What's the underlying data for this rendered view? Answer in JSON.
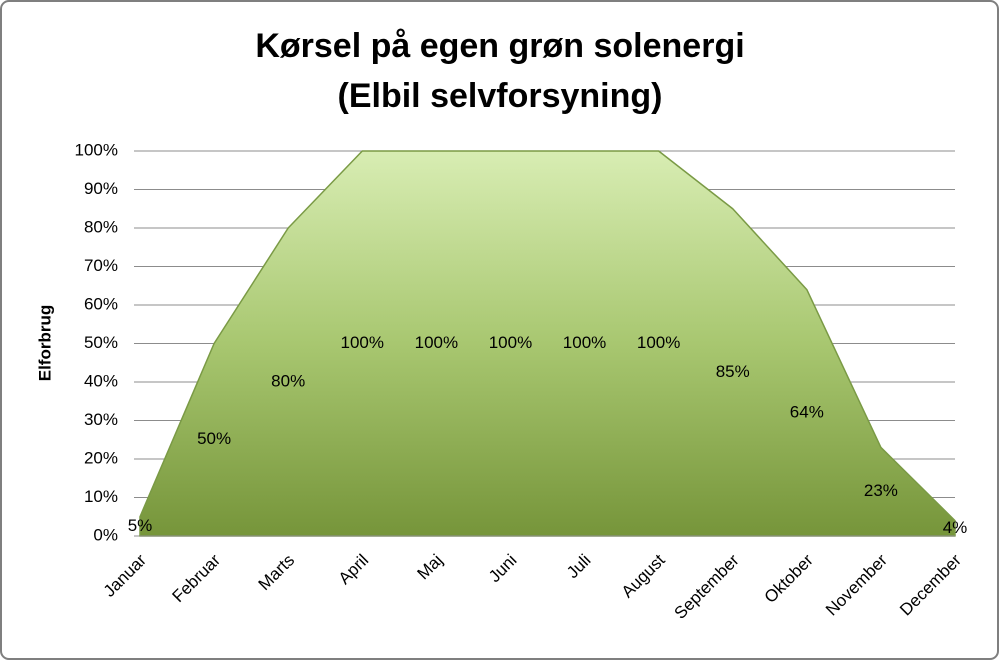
{
  "chart_data": {
    "type": "area",
    "title": [
      "Kørsel på egen grøn solenergi",
      "(Elbil selvforsyning)"
    ],
    "y_label": "Elforbrug",
    "categories": [
      "Januar",
      "Februar",
      "Marts",
      "April",
      "Maj",
      "Juni",
      "Juli",
      "August",
      "September",
      "Oktober",
      "November",
      "December"
    ],
    "values": [
      5,
      50,
      80,
      100,
      100,
      100,
      100,
      100,
      85,
      64,
      23,
      4
    ],
    "value_labels": [
      "5%",
      "50%",
      "80%",
      "100%",
      "100%",
      "100%",
      "100%",
      "100%",
      "85%",
      "64%",
      "23%",
      "4%"
    ],
    "color": "#8fb34f",
    "ylim": [
      0,
      100
    ],
    "yticks": [
      {
        "value": 0,
        "label": "0%"
      },
      {
        "value": 10,
        "label": "10%"
      },
      {
        "value": 20,
        "label": "20%"
      },
      {
        "value": 30,
        "label": "30%"
      },
      {
        "value": 40,
        "label": "40%"
      },
      {
        "value": 50,
        "label": "50%"
      },
      {
        "value": 60,
        "label": "60%"
      },
      {
        "value": 70,
        "label": "70%"
      },
      {
        "value": 80,
        "label": "80%"
      },
      {
        "value": 90,
        "label": "90%"
      },
      {
        "value": 100,
        "label": "100%"
      }
    ],
    "grid": true
  }
}
